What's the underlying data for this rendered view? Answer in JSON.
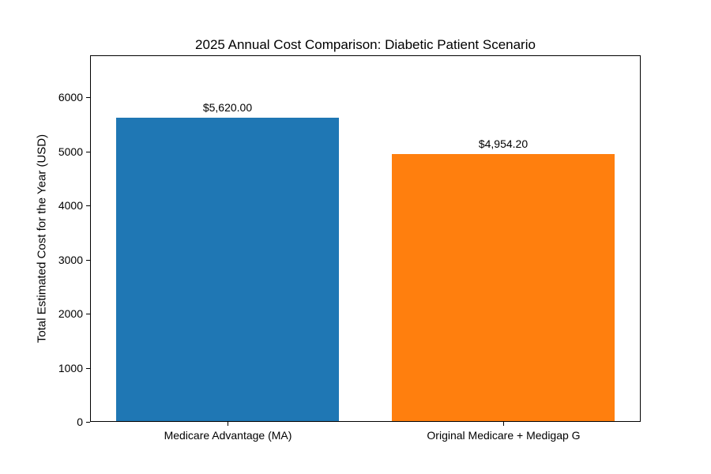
{
  "chart_data": {
    "type": "bar",
    "title": "2025 Annual Cost Comparison: Diabetic Patient Scenario",
    "xlabel": "",
    "ylabel": "Total Estimated Cost for the Year (USD)",
    "categories": [
      "Medicare Advantage (MA)",
      "Original Medicare + Medigap G"
    ],
    "values": [
      5620.0,
      4954.2
    ],
    "bar_labels": [
      "$5,620.00",
      "$4,954.20"
    ],
    "bar_colors": [
      "#1f77b4",
      "#ff7f0e"
    ],
    "yticks": [
      0,
      1000,
      2000,
      3000,
      4000,
      5000,
      6000
    ],
    "ylim": [
      0,
      6775
    ],
    "grid": false,
    "legend": false
  }
}
